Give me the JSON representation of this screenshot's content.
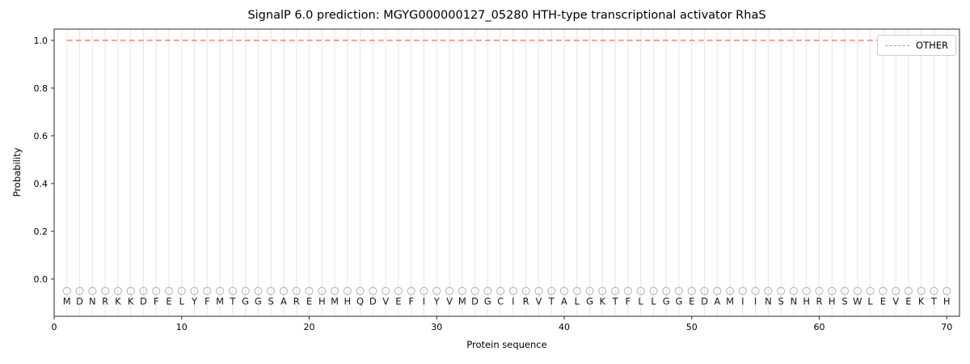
{
  "chart_data": {
    "type": "line",
    "title": "SignalP 6.0 prediction: MGYG000000127_05280 HTH-type transcriptional activator RhaS",
    "xlabel": "Protein sequence",
    "ylabel": "Probability",
    "xlim": [
      0,
      71
    ],
    "ylim": [
      -0.156,
      1.047
    ],
    "xticks": [
      0,
      10,
      20,
      30,
      40,
      50,
      60,
      70
    ],
    "yticks": [
      0.0,
      0.2,
      0.4,
      0.6,
      0.8,
      1.0
    ],
    "grid": "vertical-gridline-per-residue",
    "legend": {
      "position": "upper right",
      "entries": [
        {
          "label": "OTHER",
          "color": "#f08080",
          "style": "dashed"
        }
      ]
    },
    "series": [
      {
        "name": "OTHER",
        "style": "dashed",
        "color": "#f08080",
        "y_constant": 1.0
      }
    ],
    "sequence": [
      "M",
      "D",
      "N",
      "R",
      "K",
      "K",
      "D",
      "F",
      "E",
      "L",
      "Y",
      "F",
      "M",
      "T",
      "G",
      "G",
      "S",
      "A",
      "R",
      "E",
      "H",
      "M",
      "H",
      "Q",
      "D",
      "V",
      "E",
      "F",
      "I",
      "Y",
      "V",
      "M",
      "D",
      "G",
      "C",
      "I",
      "R",
      "V",
      "T",
      "A",
      "L",
      "G",
      "K",
      "T",
      "F",
      "L",
      "L",
      "G",
      "G",
      "E",
      "D",
      "A",
      "M",
      "I",
      "I",
      "N",
      "S",
      "N",
      "H",
      "R",
      "H",
      "S",
      "W",
      "L",
      "E",
      "V",
      "E",
      "K",
      "T",
      "H"
    ],
    "marker_y": -0.05,
    "colors": {
      "line": "#f08080",
      "grid": "#e6e6e6",
      "marker": "#bdbdbd",
      "spine": "#2b2b2b",
      "text": "#000000"
    }
  }
}
